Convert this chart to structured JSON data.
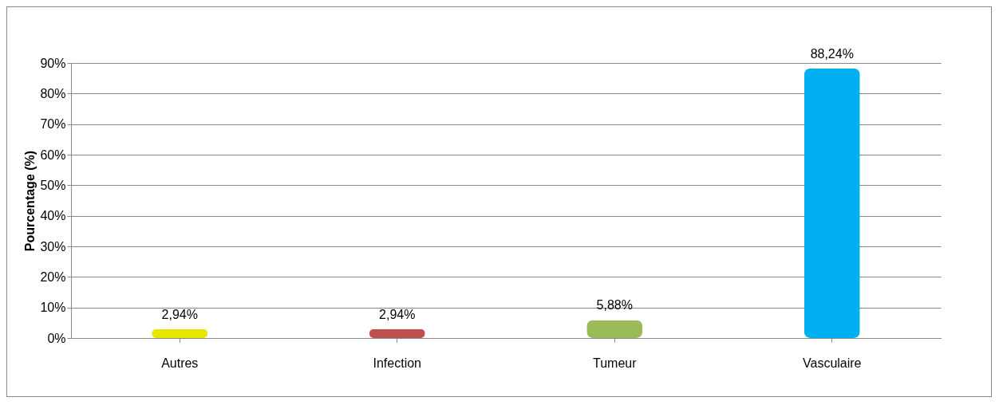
{
  "chart_data": {
    "type": "bar",
    "ylabel": "Pourcentage (%)",
    "categories": [
      "Autres",
      "Infection",
      "Tumeur",
      "Vasculaire"
    ],
    "values": [
      2.94,
      2.94,
      5.88,
      88.24
    ],
    "colors": [
      "#e6e600",
      "#c0504d",
      "#9bbb59",
      "#00b0f0"
    ],
    "value_labels": [
      "2,94%",
      "2,94%",
      "5,88%",
      "88,24%"
    ],
    "ylim": [
      0,
      90
    ],
    "yticks": [
      {
        "value": 0,
        "label": "0%"
      },
      {
        "value": 10,
        "label": "10%"
      },
      {
        "value": 20,
        "label": "20%"
      },
      {
        "value": 30,
        "label": "30%"
      },
      {
        "value": 40,
        "label": "40%"
      },
      {
        "value": 50,
        "label": "50%"
      },
      {
        "value": 60,
        "label": "60%"
      },
      {
        "value": 70,
        "label": "70%"
      },
      {
        "value": 80,
        "label": "80%"
      },
      {
        "value": 90,
        "label": "90%"
      }
    ],
    "grid": "y",
    "legend": false
  }
}
